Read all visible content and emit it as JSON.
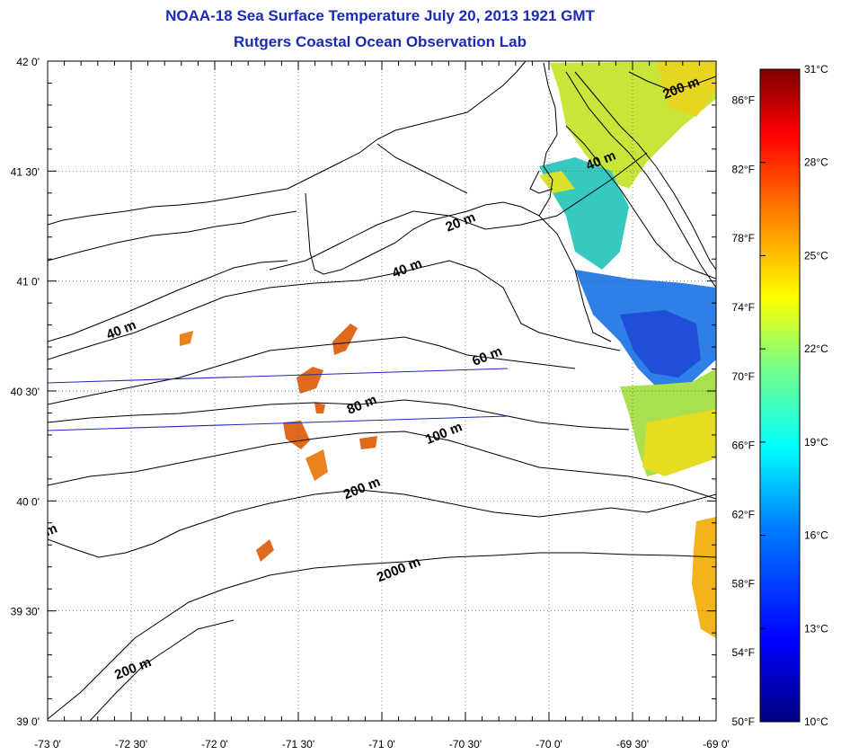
{
  "title": {
    "line1": "NOAA-18 Sea Surface Temperature July 20, 2013 1921 GMT",
    "line2": "Rutgers Coastal Ocean Observation Lab"
  },
  "map": {
    "lon_ticks": [
      "-73 0'",
      "-72 30'",
      "-72 0'",
      "-71 30'",
      "-71 0'",
      "-70 30'",
      "-70 0'",
      "-69 30'",
      "-69 0'"
    ],
    "lat_ticks": [
      "42 0'",
      "41 30'",
      "41 0'",
      "40 30'",
      "40 0'",
      "39 30'",
      "39 0'"
    ],
    "lon_range": [
      -73,
      -69
    ],
    "lat_range": [
      39,
      42
    ],
    "contour_labels": [
      {
        "text": "200 m",
        "lon": -69.2,
        "lat": 41.86
      },
      {
        "text": "40 m",
        "lon": -69.68,
        "lat": 41.53
      },
      {
        "text": "20 m",
        "lon": -70.52,
        "lat": 41.25
      },
      {
        "text": "40 m",
        "lon": -70.84,
        "lat": 41.04
      },
      {
        "text": "40 m",
        "lon": -72.55,
        "lat": 40.76
      },
      {
        "text": "60 m",
        "lon": -70.36,
        "lat": 40.64
      },
      {
        "text": "80 m",
        "lon": -71.11,
        "lat": 40.42
      },
      {
        "text": "100 m",
        "lon": -70.62,
        "lat": 40.29
      },
      {
        "text": "200 m",
        "lon": -71.11,
        "lat": 40.04
      },
      {
        "text": "2000 m",
        "lon": -70.89,
        "lat": 39.67
      },
      {
        "text": "200 m",
        "lon": -72.48,
        "lat": 39.22
      },
      {
        "text": "m",
        "lon": -72.97,
        "lat": 39.85
      }
    ]
  },
  "colorbar": {
    "celsius_ticks": [
      "31°C",
      "28°C",
      "25°C",
      "22°C",
      "19°C",
      "16°C",
      "13°C",
      "10°C"
    ],
    "fahrenheit_ticks": [
      "86°F",
      "82°F",
      "78°F",
      "74°F",
      "70°F",
      "66°F",
      "62°F",
      "58°F",
      "54°F",
      "50°F"
    ],
    "range_c": [
      10,
      31
    ],
    "colors": [
      "#00007f",
      "#0000ff",
      "#007fff",
      "#00ffff",
      "#7fff7f",
      "#ffff00",
      "#ff7f00",
      "#ff0000",
      "#7f0000"
    ]
  }
}
